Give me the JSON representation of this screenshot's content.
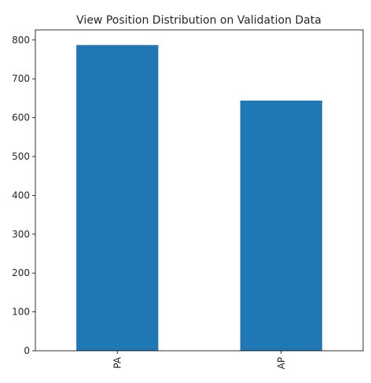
{
  "chart_data": {
    "type": "bar",
    "title": "View Position Distribution on Validation Data",
    "xlabel": "",
    "ylabel": "",
    "categories": [
      "PA",
      "AP"
    ],
    "values": [
      787,
      644
    ],
    "ylim": [
      0,
      826
    ],
    "yticks": [
      0,
      100,
      200,
      300,
      400,
      500,
      600,
      700,
      800
    ],
    "bar_color": "#1f77b4",
    "grid": false,
    "legend": "none",
    "xtick_rotation": "vertical"
  }
}
